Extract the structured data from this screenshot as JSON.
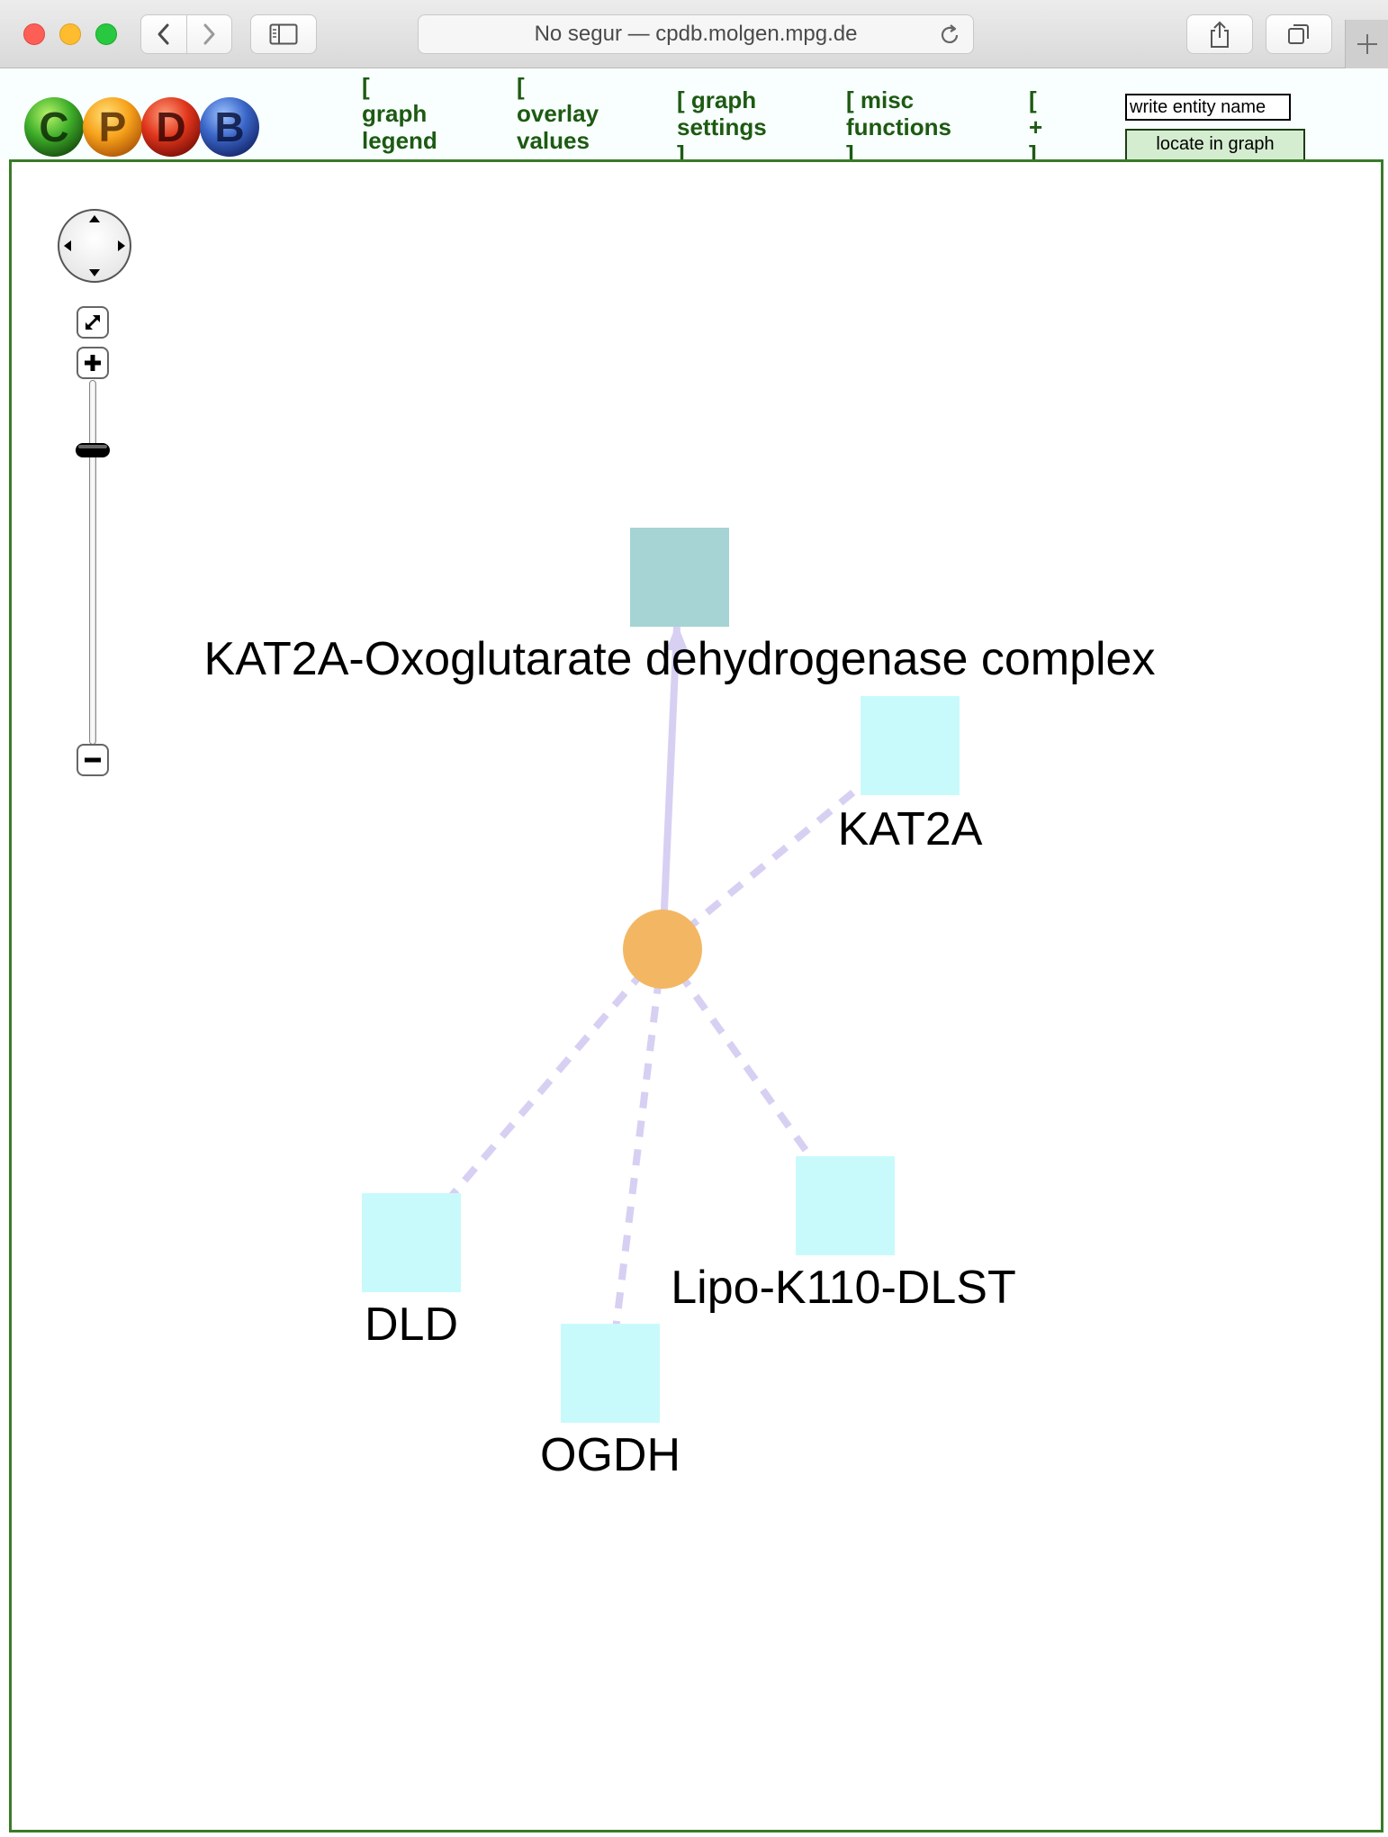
{
  "browser": {
    "url_text": "No segur — cpdb.molgen.mpg.de"
  },
  "header": {
    "logo_letters": [
      "C",
      "P",
      "D",
      "B"
    ],
    "menu": [
      {
        "id": "graph-legend",
        "lines": [
          "[",
          "graph",
          "legend"
        ]
      },
      {
        "id": "overlay-values",
        "lines": [
          "[",
          "overlay",
          "values"
        ]
      },
      {
        "id": "graph-settings",
        "lines": [
          "[ graph",
          "settings",
          "]"
        ]
      },
      {
        "id": "misc-functions",
        "lines": [
          "[ misc",
          "functions",
          "]"
        ]
      },
      {
        "id": "plus",
        "lines": [
          "[",
          "+",
          "]"
        ]
      }
    ],
    "entity_placeholder": "write entity name",
    "locate_label": "locate in graph"
  },
  "graph": {
    "colors": {
      "complex_node": "#a6d4d4",
      "protein_node": "#c9fafb",
      "hub_node": "#f3b763",
      "edge": "#d7d0f3",
      "frame": "#3a7a28"
    },
    "nodes": [
      {
        "id": "complex",
        "label": "KAT2A-Oxoglutarate dehydrogenase complex",
        "type": "complex"
      },
      {
        "id": "kat2a",
        "label": "KAT2A",
        "type": "protein"
      },
      {
        "id": "dld",
        "label": "DLD",
        "type": "protein"
      },
      {
        "id": "ogdh",
        "label": "OGDH",
        "type": "protein"
      },
      {
        "id": "dlst",
        "label": "Lipo-K110-DLST",
        "type": "protein"
      },
      {
        "id": "hub",
        "label": "",
        "type": "interaction"
      }
    ],
    "edges": [
      {
        "from": "hub",
        "to": "complex",
        "style": "solid",
        "arrow": true
      },
      {
        "from": "hub",
        "to": "kat2a",
        "style": "dashed"
      },
      {
        "from": "hub",
        "to": "dld",
        "style": "dashed"
      },
      {
        "from": "hub",
        "to": "ogdh",
        "style": "dashed"
      },
      {
        "from": "hub",
        "to": "dlst",
        "style": "dashed"
      }
    ]
  }
}
